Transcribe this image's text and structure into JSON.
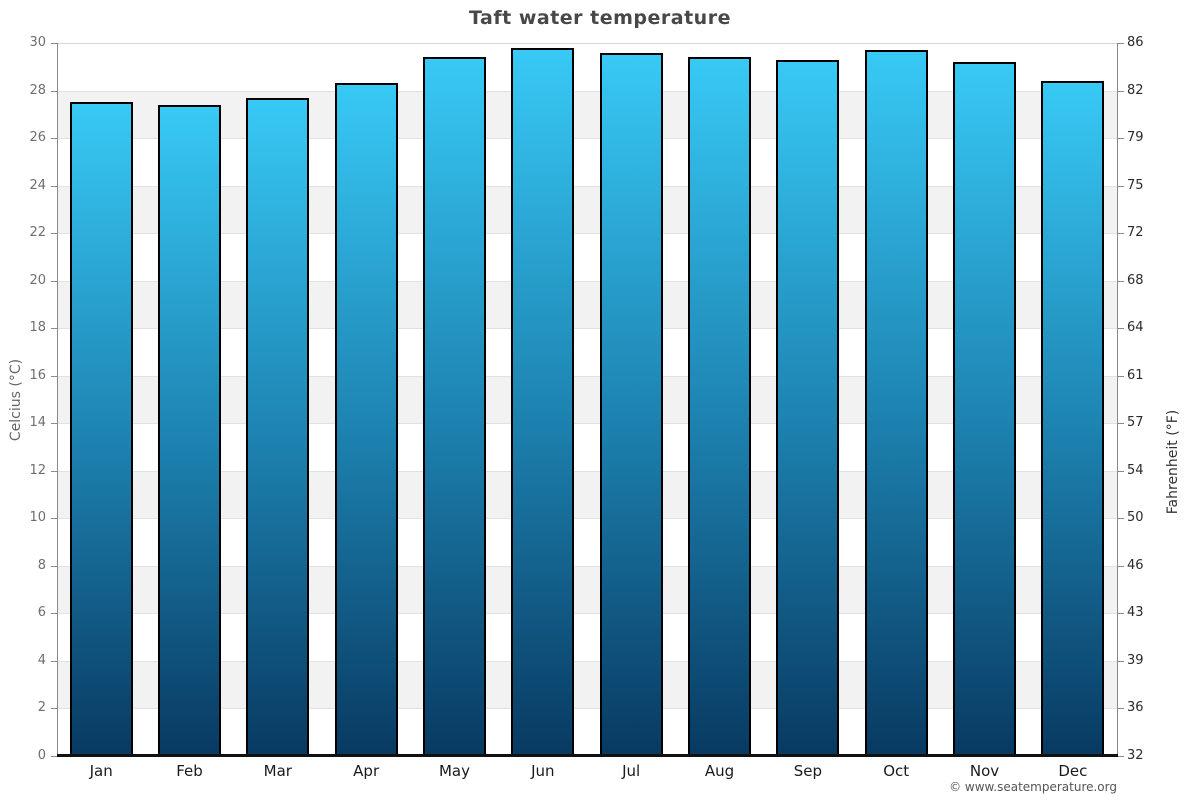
{
  "title": "Taft water temperature",
  "copyright": "© www.seatemperature.org",
  "chart_data": {
    "type": "bar",
    "title": "Taft water temperature",
    "categories": [
      "Jan",
      "Feb",
      "Mar",
      "Apr",
      "May",
      "Jun",
      "Jul",
      "Aug",
      "Sep",
      "Oct",
      "Nov",
      "Dec"
    ],
    "values": [
      27.5,
      27.4,
      27.7,
      28.3,
      29.4,
      29.8,
      29.6,
      29.4,
      29.3,
      29.7,
      29.2,
      28.4
    ],
    "unit": "°C",
    "ylabel_left": "Celcius (°C)",
    "ylabel_right": "Fahrenheit (°F)",
    "ylim": [
      0,
      30
    ],
    "yticks_celsius": [
      0,
      2,
      4,
      6,
      8,
      10,
      12,
      14,
      16,
      18,
      20,
      22,
      24,
      26,
      28,
      30
    ],
    "yticks_fahrenheit": [
      32,
      36,
      39,
      43,
      46,
      50,
      54,
      57,
      61,
      64,
      68,
      72,
      75,
      79,
      82,
      86
    ],
    "grid": "horizontal gridlines every 2°C with alternating gray bands",
    "legend": "none"
  },
  "colors": {
    "bar_gradient_top": "#38c9f5",
    "bar_gradient_mid": "#1e85b3",
    "bar_gradient_bottom": "#083a62",
    "bar_border": "#000000",
    "band_gray": "#f2f2f2",
    "gridline": "#e2e2e2",
    "baseline": "#111111",
    "title_color": "#484848"
  }
}
